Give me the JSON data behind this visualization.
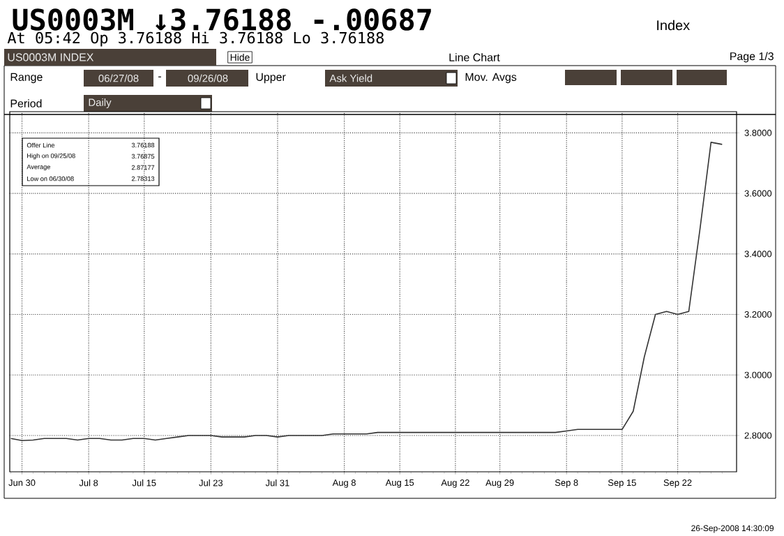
{
  "chart_data": {
    "type": "line",
    "title": "US0003M ↓3.76188 -.00687",
    "subtitle": "At 05:42 Op 3.76188 Hi 3.76188 Lo 3.76188",
    "categories": [
      null,
      "Jun 30",
      null,
      null,
      null,
      null,
      null,
      "Jul 8",
      null,
      null,
      null,
      null,
      "Jul 15",
      null,
      null,
      null,
      null,
      null,
      "Jul 23",
      null,
      null,
      null,
      null,
      null,
      "Jul 31",
      null,
      null,
      null,
      null,
      null,
      "Aug 8",
      null,
      null,
      null,
      null,
      "Aug 15",
      null,
      null,
      null,
      null,
      "Aug 22",
      null,
      null,
      null,
      "Aug 29",
      null,
      null,
      null,
      null,
      null,
      "Sep 8",
      null,
      null,
      null,
      null,
      "Sep 15",
      null,
      null,
      null,
      null,
      "Sep 22",
      null,
      null,
      null,
      null
    ],
    "series": [
      {
        "color": "#333333",
        "values": [
          2.79,
          2.78313,
          2.785,
          2.79,
          2.79,
          2.79,
          2.785,
          2.79,
          2.79,
          2.785,
          2.785,
          2.79,
          2.79,
          2.785,
          2.79,
          2.795,
          2.8,
          2.8,
          2.8,
          2.795,
          2.795,
          2.795,
          2.8,
          2.8,
          2.795,
          2.8,
          2.8,
          2.8,
          2.8,
          2.805,
          2.805,
          2.805,
          2.805,
          2.81,
          2.81,
          2.81,
          2.81,
          2.81,
          2.81,
          2.81,
          2.81,
          2.81,
          2.81,
          2.81,
          2.81,
          2.81,
          2.81,
          2.81,
          2.81,
          2.81,
          2.815,
          2.82,
          2.82,
          2.82,
          2.82,
          2.82,
          2.88,
          3.06,
          3.2,
          3.21,
          3.2,
          3.21,
          3.48,
          3.76875,
          3.76188
        ]
      }
    ],
    "ylim": [
      2.68,
      3.87
    ],
    "yticks": [
      {
        "value": 2.8,
        "label": "2.8000"
      },
      {
        "value": 3.0,
        "label": "3.0000"
      },
      {
        "value": 3.2,
        "label": "3.2000"
      },
      {
        "value": 3.4,
        "label": "3.4000"
      },
      {
        "value": 3.6,
        "label": "3.6000"
      },
      {
        "value": 3.8,
        "label": "3.8000"
      }
    ],
    "grid": true,
    "annotations": [
      "US0003M INDEX",
      "Hide",
      "Line Chart",
      "Page 1/3",
      "Index",
      "Range",
      "06/27/08",
      "-",
      "09/26/08",
      "Upper",
      "Ask Yield",
      "Mov. Avgs",
      "Period",
      "Daily",
      "Offer Line",
      "3.76188",
      "High on  09/25/08",
      "3.76875",
      "Average",
      "2.87177",
      "Low on  06/30/08",
      "2.78313",
      "26-Sep-2008 14:30:09"
    ]
  }
}
